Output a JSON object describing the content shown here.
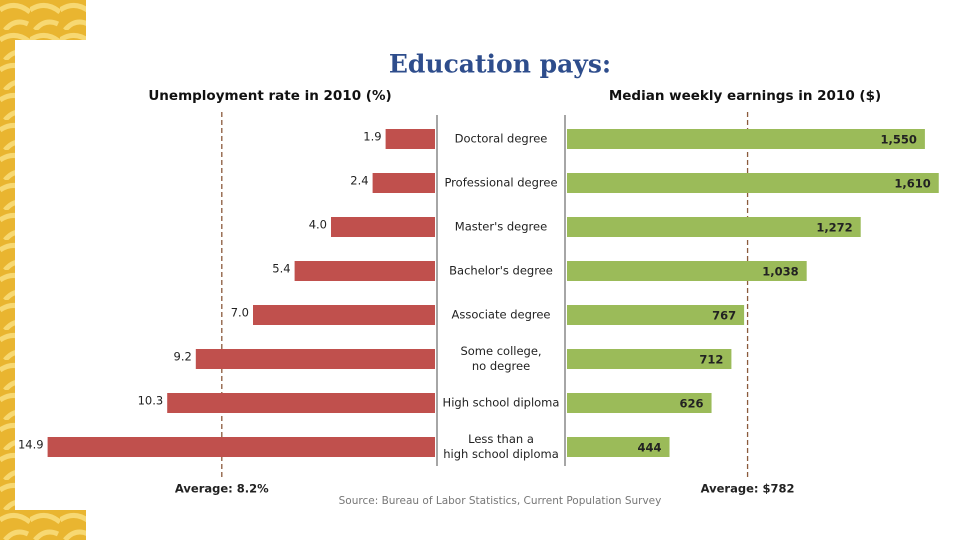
{
  "title": "Education pays:",
  "source": "Source: Bureau of Labor Statistics, Current Population Survey",
  "chart_data": [
    {
      "type": "bar",
      "orientation": "left",
      "title": "Unemployment rate in 2010 (%)",
      "categories": [
        "Doctoral degree",
        "Professional degree",
        "Master's degree",
        "Bachelor's degree",
        "Associate degree",
        "Some college,\nno degree",
        "High school diploma",
        "Less than a\nhigh school diploma"
      ],
      "values": [
        1.9,
        2.4,
        4.0,
        5.4,
        7.0,
        9.2,
        10.3,
        14.9
      ],
      "value_labels": [
        "1.9",
        "2.4",
        "4.0",
        "5.4",
        "7.0",
        "9.2",
        "10.3",
        "14.9"
      ],
      "color": "#c0504d",
      "xlim": [
        0,
        15
      ],
      "average": {
        "value": 8.2,
        "label": "Average: 8.2%"
      }
    },
    {
      "type": "bar",
      "orientation": "right",
      "title": "Median weekly earnings in 2010 ($)",
      "values": [
        1550,
        1610,
        1272,
        1038,
        767,
        712,
        626,
        444
      ],
      "value_labels": [
        "1,550",
        "1,610",
        "1,272",
        "1,038",
        "767",
        "712",
        "626",
        "444"
      ],
      "color": "#9bbb59",
      "xlim": [
        0,
        1650
      ],
      "average": {
        "value": 782,
        "label": "Average: $782"
      }
    }
  ]
}
